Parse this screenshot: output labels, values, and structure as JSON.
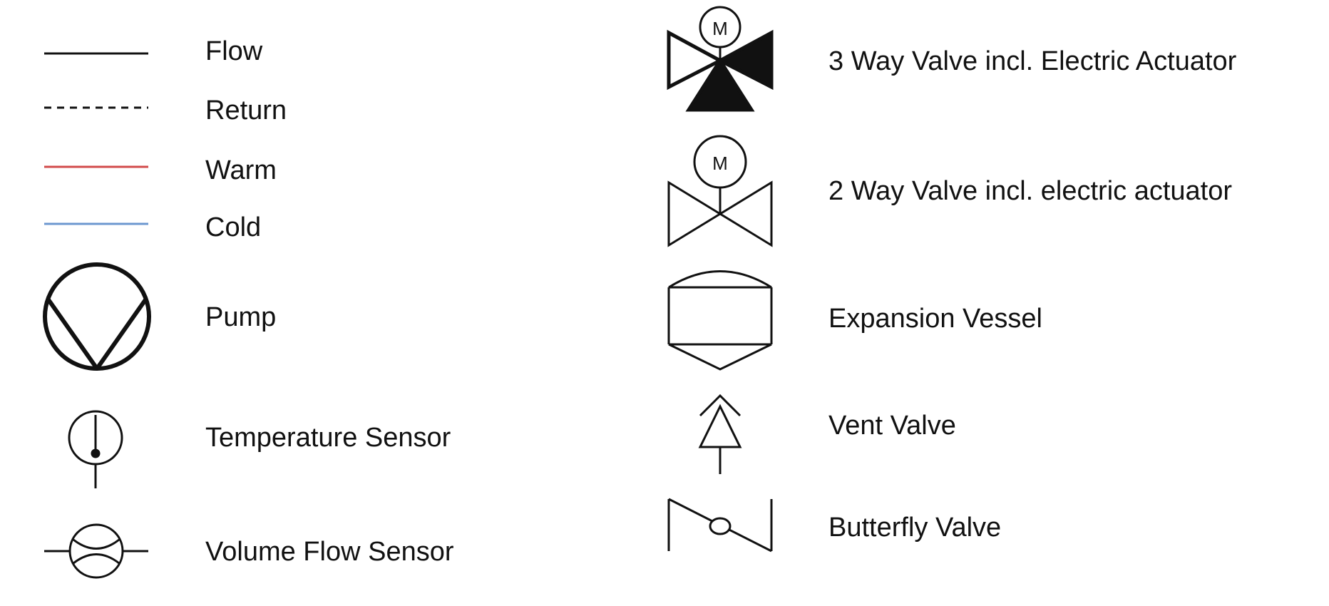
{
  "legend": {
    "items": [
      {
        "id": "flow",
        "label": "Flow",
        "icon": "solid-line-icon"
      },
      {
        "id": "return",
        "label": "Return",
        "icon": "dashed-line-icon"
      },
      {
        "id": "warm",
        "label": "Warm",
        "icon": "red-line-icon",
        "color": "#d24b4b"
      },
      {
        "id": "cold",
        "label": "Cold",
        "icon": "blue-line-icon",
        "color": "#6c97cf"
      },
      {
        "id": "pump",
        "label": "Pump",
        "icon": "pump-icon"
      },
      {
        "id": "temperature-sensor",
        "label": "Temperature Sensor",
        "icon": "temperature-sensor-icon"
      },
      {
        "id": "volume-flow-sensor",
        "label": "Volume Flow Sensor",
        "icon": "volume-flow-sensor-icon"
      },
      {
        "id": "3-way-valve",
        "label": "3 Way Valve incl. Electric Actuator",
        "icon": "three-way-valve-icon",
        "actuator_letter": "M"
      },
      {
        "id": "2-way-valve",
        "label": "2 Way Valve incl. electric actuator",
        "icon": "two-way-valve-icon",
        "actuator_letter": "M"
      },
      {
        "id": "expansion-vessel",
        "label": "Expansion Vessel",
        "icon": "expansion-vessel-icon"
      },
      {
        "id": "vent-valve",
        "label": "Vent Valve",
        "icon": "vent-valve-icon"
      },
      {
        "id": "butterfly-valve",
        "label": "Butterfly Valve",
        "icon": "butterfly-valve-icon"
      }
    ]
  },
  "colors": {
    "line": "#111111",
    "warm": "#d24b4b",
    "cold": "#6c97cf",
    "background": "#ffffff"
  }
}
